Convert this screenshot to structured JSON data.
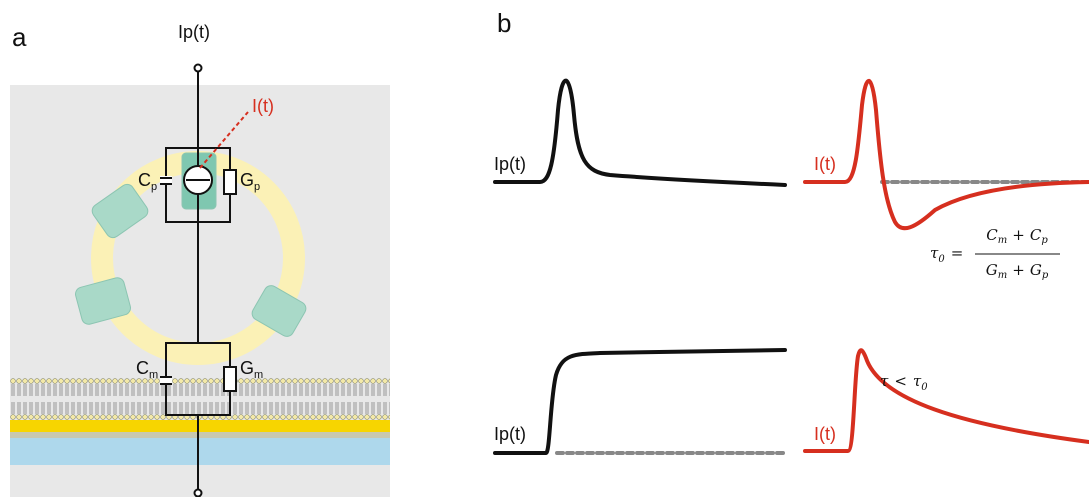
{
  "panel_a": {
    "label": "a",
    "input_label": "Ip(t)",
    "current_label": "I(t)",
    "protein_capacitance": {
      "symbol": "C",
      "sub": "p"
    },
    "protein_conductance": {
      "symbol": "G",
      "sub": "p"
    },
    "membrane_capacitance": {
      "symbol": "C",
      "sub": "m"
    },
    "membrane_conductance": {
      "symbol": "G",
      "sub": "m"
    }
  },
  "panel_b": {
    "label": "b",
    "top_left_label": "Ip(t)",
    "top_right_label": "I(t)",
    "bottom_left_label": "Ip(t)",
    "bottom_right_label": "I(t)",
    "formula": {
      "lhs": {
        "symbol": "τ",
        "sub": "0"
      },
      "equals": "=",
      "numerator": [
        {
          "symbol": "C",
          "sub": "m"
        },
        {
          "op": "+"
        },
        {
          "symbol": "C",
          "sub": "p"
        }
      ],
      "denominator": [
        {
          "symbol": "G",
          "sub": "m"
        },
        {
          "op": "+"
        },
        {
          "symbol": "G",
          "sub": "p"
        }
      ]
    },
    "condition": {
      "lhs": {
        "symbol": "τ"
      },
      "op": "<",
      "rhs": {
        "symbol": "τ",
        "sub": "0"
      }
    }
  }
}
